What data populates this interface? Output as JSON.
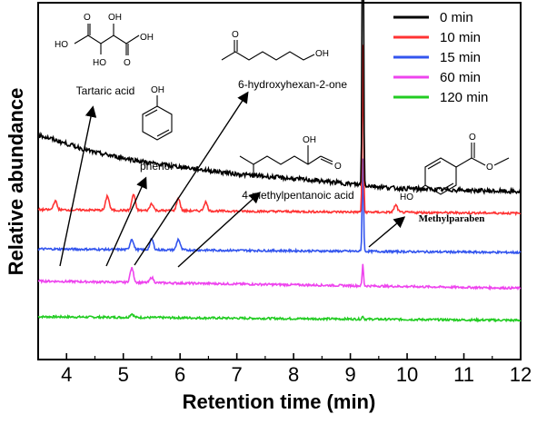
{
  "chart_data": {
    "type": "line",
    "title": "",
    "xlabel": "Retention time (min)",
    "ylabel": "Relative abundance",
    "xlim": [
      3.5,
      12
    ],
    "x_ticks": [
      "4",
      "5",
      "6",
      "7",
      "8",
      "9",
      "10",
      "11",
      "12"
    ],
    "grid": false,
    "legend_position": "top-right",
    "series": [
      {
        "name": "0 min",
        "color": "#000000",
        "baseline": [
          [
            3.5,
            0.63
          ],
          [
            4.5,
            0.58
          ],
          [
            5.5,
            0.55
          ],
          [
            7,
            0.52
          ],
          [
            8.5,
            0.5
          ],
          [
            9.8,
            0.48
          ],
          [
            12,
            0.47
          ]
        ],
        "peaks": [
          [
            9.22,
            1.0
          ]
        ]
      },
      {
        "name": "10 min",
        "color": "#ff3333",
        "baseline": [
          [
            3.5,
            0.42
          ],
          [
            12,
            0.41
          ]
        ],
        "peaks": [
          [
            3.8,
            0.025
          ],
          [
            4.72,
            0.04
          ],
          [
            5.18,
            0.045
          ],
          [
            5.5,
            0.02
          ],
          [
            5.97,
            0.035
          ],
          [
            6.45,
            0.025
          ],
          [
            9.22,
            0.47
          ],
          [
            9.8,
            0.02
          ]
        ]
      },
      {
        "name": "15 min",
        "color": "#3355ee",
        "baseline": [
          [
            3.5,
            0.31
          ],
          [
            12,
            0.3
          ]
        ],
        "peaks": [
          [
            5.15,
            0.03
          ],
          [
            5.5,
            0.03
          ],
          [
            5.97,
            0.03
          ],
          [
            9.22,
            0.26
          ]
        ]
      },
      {
        "name": "60 min",
        "color": "#ee44ee",
        "baseline": [
          [
            3.5,
            0.22
          ],
          [
            12,
            0.2
          ]
        ],
        "peaks": [
          [
            5.15,
            0.04
          ],
          [
            5.5,
            0.015
          ],
          [
            9.22,
            0.06
          ]
        ]
      },
      {
        "name": "120 min",
        "color": "#22cc22",
        "baseline": [
          [
            3.5,
            0.12
          ],
          [
            12,
            0.11
          ]
        ],
        "peaks": [
          [
            5.15,
            0.01
          ],
          [
            9.22,
            0.01
          ]
        ]
      }
    ],
    "annotations": [
      {
        "label": "Tartaric acid",
        "x": 3.8
      },
      {
        "label": "phenol",
        "x": 4.72
      },
      {
        "label": "6-hydroxyhexan-2-one",
        "x": 5.18
      },
      {
        "label": "4-methylpentanoic acid",
        "x": 5.97
      },
      {
        "label": "Methylparaben",
        "x": 9.22
      }
    ],
    "structure_atoms": {
      "tartaric": [
        "HO",
        "OH",
        "O",
        "HO",
        "OH",
        "O",
        "OH"
      ],
      "phenol": [
        "OH"
      ],
      "hexanone": [
        "O",
        "OH"
      ],
      "pentanoic": [
        "OH",
        "O"
      ],
      "paraben": [
        "O",
        "O",
        "HO"
      ]
    }
  }
}
